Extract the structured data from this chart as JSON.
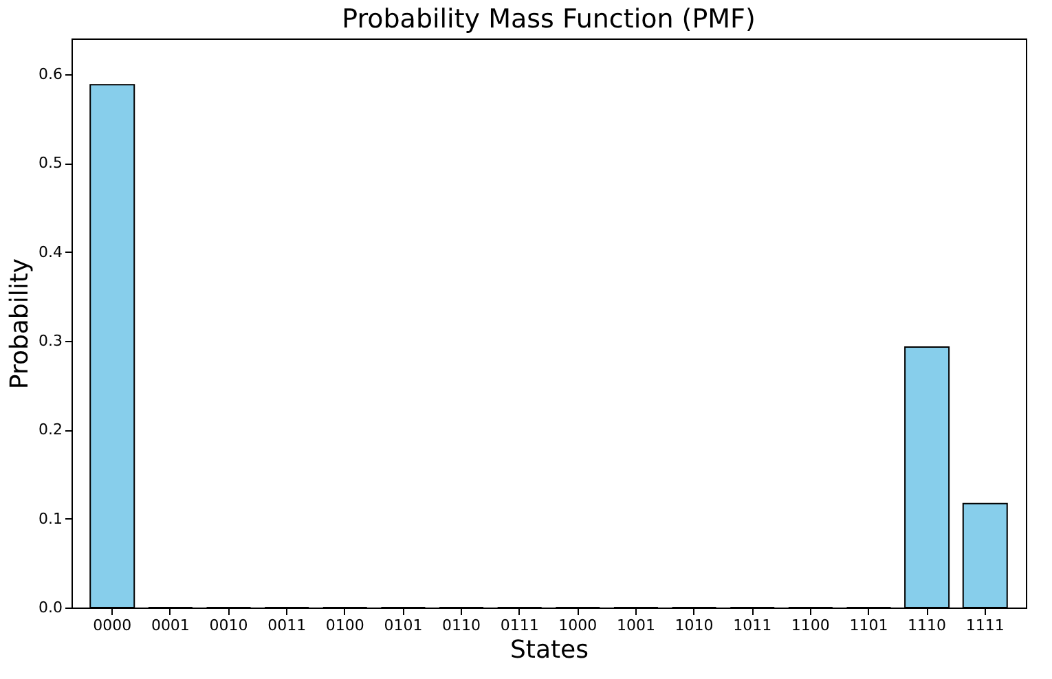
{
  "chart_data": {
    "type": "bar",
    "title": "Probability Mass Function (PMF)",
    "xlabel": "States",
    "ylabel": "Probability",
    "categories": [
      "0000",
      "0001",
      "0010",
      "0011",
      "0100",
      "0101",
      "0110",
      "0111",
      "1000",
      "1001",
      "1010",
      "1011",
      "1100",
      "1101",
      "1110",
      "1111"
    ],
    "values": [
      0.588,
      0,
      0,
      0,
      0,
      0,
      0,
      0,
      0,
      0,
      0,
      0,
      0,
      0,
      0.293,
      0.117
    ],
    "color": "#87ceeb",
    "ylim": [
      0,
      0.64
    ],
    "yticks": [
      {
        "value": 0,
        "label": "0.0"
      },
      0.1,
      0.2,
      0.3,
      0.4,
      0.5,
      0.6
    ],
    "grid": false
  }
}
